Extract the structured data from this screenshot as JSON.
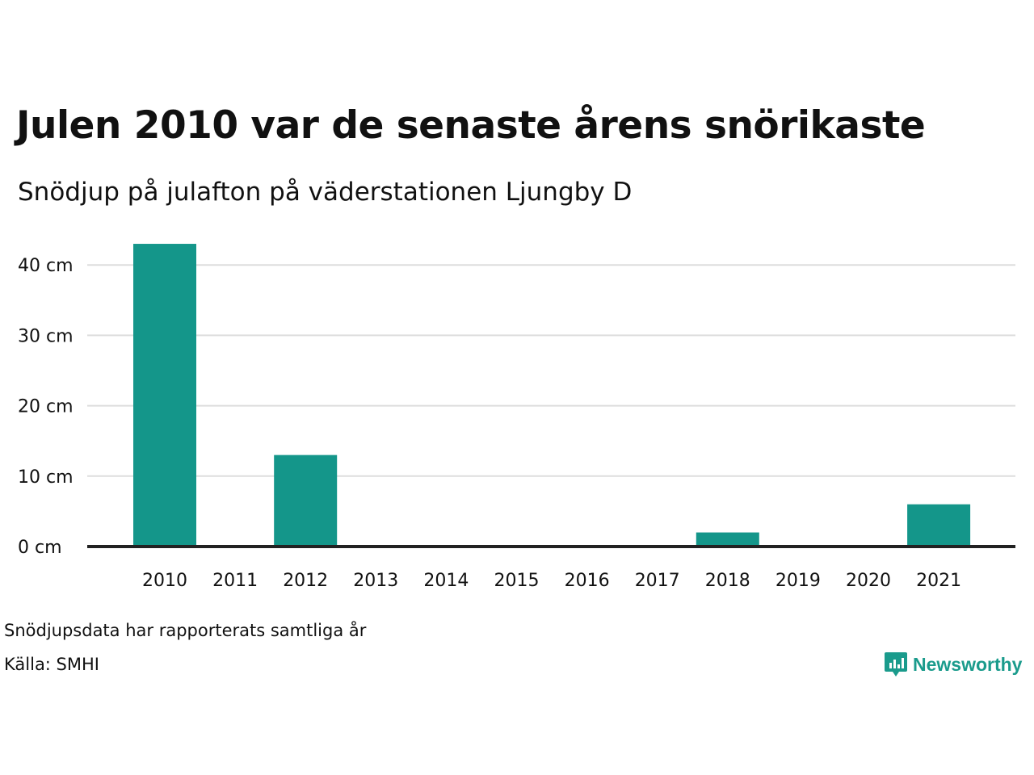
{
  "header": {
    "title": "Julen 2010 var de senaste årens snörikaste",
    "subtitle": "Snödjup på julafton på väderstationen Ljungby D"
  },
  "footer": {
    "note": "Snödjupsdata har rapporterats samtliga år",
    "source": "Källa: SMHI",
    "brand": "Newsworthy",
    "brand_icon": "newsworthy-logo-icon"
  },
  "colors": {
    "bar": "#14968a",
    "grid": "#dddddd",
    "baseline": "#222222",
    "brand": "#1a9b8c"
  },
  "chart_data": {
    "type": "bar",
    "categories": [
      "2010",
      "2011",
      "2012",
      "2013",
      "2014",
      "2015",
      "2016",
      "2017",
      "2018",
      "2019",
      "2020",
      "2021"
    ],
    "values": [
      43,
      0,
      13,
      0,
      0,
      0,
      0,
      0,
      2,
      0,
      0,
      6
    ],
    "title": "Julen 2010 var de senaste årens snörikaste",
    "subtitle": "Snödjup på julafton på väderstationen Ljungby D",
    "xlabel": "",
    "ylabel": "",
    "yticks": [
      "0 cm",
      "10 cm",
      "20 cm",
      "30 cm",
      "40 cm"
    ],
    "ylim": [
      0,
      45
    ],
    "grid": true,
    "legend": "none"
  }
}
